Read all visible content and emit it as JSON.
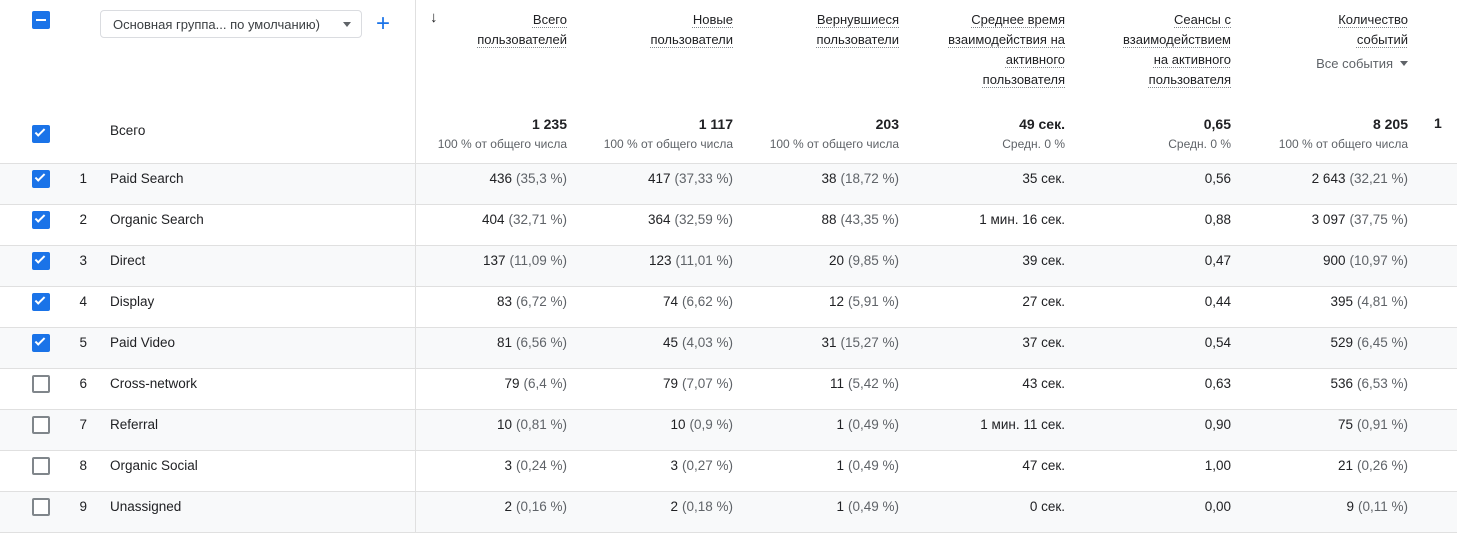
{
  "toolbar": {
    "select_all_state": "indeterminate",
    "dimension_selector_label": "Основная группа... по умолчанию)",
    "add_button_label": "+"
  },
  "header": {
    "sort_icon": "↓",
    "columns": [
      {
        "label": "Всего пользователей",
        "sorted": true
      },
      {
        "label": "Новые пользователи"
      },
      {
        "label": "Вернувшиеся пользователи"
      },
      {
        "label": "Среднее время взаимодействия на активного пользователя"
      },
      {
        "label": "Сеансы с взаимодействием на активного пользователя"
      },
      {
        "label": "Количество событий",
        "filter_label": "Все события"
      }
    ]
  },
  "totals": {
    "label": "Всего",
    "checked": true,
    "metrics": [
      {
        "value": "1 235",
        "sub": "100 % от общего числа"
      },
      {
        "value": "1 117",
        "sub": "100 % от общего числа"
      },
      {
        "value": "203",
        "sub": "100 % от общего числа"
      },
      {
        "value": "49 сек.",
        "sub": "Средн. 0 %"
      },
      {
        "value": "0,65",
        "sub": "Средн. 0 %"
      },
      {
        "value": "8 205",
        "sub": "100 % от общего числа"
      }
    ],
    "clipped_next_value": "1"
  },
  "rows": [
    {
      "index": 1,
      "channel": "Paid Search",
      "checked": true,
      "metrics": [
        {
          "value": "436",
          "pct": "(35,3 %)"
        },
        {
          "value": "417",
          "pct": "(37,33 %)"
        },
        {
          "value": "38",
          "pct": "(18,72 %)"
        },
        {
          "value": "35 сек.",
          "pct": ""
        },
        {
          "value": "0,56",
          "pct": ""
        },
        {
          "value": "2 643",
          "pct": "(32,21 %)"
        }
      ]
    },
    {
      "index": 2,
      "channel": "Organic Search",
      "checked": true,
      "metrics": [
        {
          "value": "404",
          "pct": "(32,71 %)"
        },
        {
          "value": "364",
          "pct": "(32,59 %)"
        },
        {
          "value": "88",
          "pct": "(43,35 %)"
        },
        {
          "value": "1 мин. 16 сек.",
          "pct": ""
        },
        {
          "value": "0,88",
          "pct": ""
        },
        {
          "value": "3 097",
          "pct": "(37,75 %)"
        }
      ]
    },
    {
      "index": 3,
      "channel": "Direct",
      "checked": true,
      "metrics": [
        {
          "value": "137",
          "pct": "(11,09 %)"
        },
        {
          "value": "123",
          "pct": "(11,01 %)"
        },
        {
          "value": "20",
          "pct": "(9,85 %)"
        },
        {
          "value": "39 сек.",
          "pct": ""
        },
        {
          "value": "0,47",
          "pct": ""
        },
        {
          "value": "900",
          "pct": "(10,97 %)"
        }
      ]
    },
    {
      "index": 4,
      "channel": "Display",
      "checked": true,
      "metrics": [
        {
          "value": "83",
          "pct": "(6,72 %)"
        },
        {
          "value": "74",
          "pct": "(6,62 %)"
        },
        {
          "value": "12",
          "pct": "(5,91 %)"
        },
        {
          "value": "27 сек.",
          "pct": ""
        },
        {
          "value": "0,44",
          "pct": ""
        },
        {
          "value": "395",
          "pct": "(4,81 %)"
        }
      ]
    },
    {
      "index": 5,
      "channel": "Paid Video",
      "checked": true,
      "metrics": [
        {
          "value": "81",
          "pct": "(6,56 %)"
        },
        {
          "value": "45",
          "pct": "(4,03 %)"
        },
        {
          "value": "31",
          "pct": "(15,27 %)"
        },
        {
          "value": "37 сек.",
          "pct": ""
        },
        {
          "value": "0,54",
          "pct": ""
        },
        {
          "value": "529",
          "pct": "(6,45 %)"
        }
      ]
    },
    {
      "index": 6,
      "channel": "Cross-network",
      "checked": false,
      "metrics": [
        {
          "value": "79",
          "pct": "(6,4 %)"
        },
        {
          "value": "79",
          "pct": "(7,07 %)"
        },
        {
          "value": "11",
          "pct": "(5,42 %)"
        },
        {
          "value": "43 сек.",
          "pct": ""
        },
        {
          "value": "0,63",
          "pct": ""
        },
        {
          "value": "536",
          "pct": "(6,53 %)"
        }
      ]
    },
    {
      "index": 7,
      "channel": "Referral",
      "checked": false,
      "metrics": [
        {
          "value": "10",
          "pct": "(0,81 %)"
        },
        {
          "value": "10",
          "pct": "(0,9 %)"
        },
        {
          "value": "1",
          "pct": "(0,49 %)"
        },
        {
          "value": "1 мин. 11 сек.",
          "pct": ""
        },
        {
          "value": "0,90",
          "pct": ""
        },
        {
          "value": "75",
          "pct": "(0,91 %)"
        }
      ]
    },
    {
      "index": 8,
      "channel": "Organic Social",
      "checked": false,
      "metrics": [
        {
          "value": "3",
          "pct": "(0,24 %)"
        },
        {
          "value": "3",
          "pct": "(0,27 %)"
        },
        {
          "value": "1",
          "pct": "(0,49 %)"
        },
        {
          "value": "47 сек.",
          "pct": ""
        },
        {
          "value": "1,00",
          "pct": ""
        },
        {
          "value": "21",
          "pct": "(0,26 %)"
        }
      ]
    },
    {
      "index": 9,
      "channel": "Unassigned",
      "checked": false,
      "metrics": [
        {
          "value": "2",
          "pct": "(0,16 %)"
        },
        {
          "value": "2",
          "pct": "(0,18 %)"
        },
        {
          "value": "1",
          "pct": "(0,49 %)"
        },
        {
          "value": "0 сек.",
          "pct": ""
        },
        {
          "value": "0,00",
          "pct": ""
        },
        {
          "value": "9",
          "pct": "(0,11 %)"
        }
      ]
    }
  ],
  "colors": {
    "accent": "#1a73e8",
    "text": "#202124",
    "muted": "#5f6368",
    "border": "#e0e0e0",
    "row_band": "#f8f9fa"
  }
}
